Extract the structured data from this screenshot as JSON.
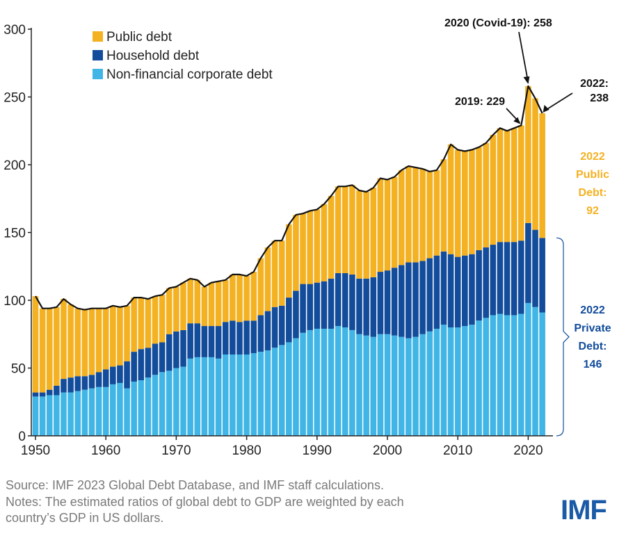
{
  "chart_data": {
    "type": "bar",
    "stacked": true,
    "x": [
      1950,
      1951,
      1952,
      1953,
      1954,
      1955,
      1956,
      1957,
      1958,
      1959,
      1960,
      1961,
      1962,
      1963,
      1964,
      1965,
      1966,
      1967,
      1968,
      1969,
      1970,
      1971,
      1972,
      1973,
      1974,
      1975,
      1976,
      1977,
      1978,
      1979,
      1980,
      1981,
      1982,
      1983,
      1984,
      1985,
      1986,
      1987,
      1988,
      1989,
      1990,
      1991,
      1992,
      1993,
      1994,
      1995,
      1996,
      1997,
      1998,
      1999,
      2000,
      2001,
      2002,
      2003,
      2004,
      2005,
      2006,
      2007,
      2008,
      2009,
      2010,
      2011,
      2012,
      2013,
      2014,
      2015,
      2016,
      2017,
      2018,
      2019,
      2020,
      2021,
      2022
    ],
    "series": [
      {
        "name": "Non-financial corporate debt",
        "color": "#41b6e6",
        "values": [
          29,
          29,
          30,
          30,
          32,
          32,
          33,
          34,
          35,
          36,
          36,
          38,
          39,
          35,
          40,
          41,
          43,
          45,
          47,
          48,
          50,
          51,
          57,
          58,
          58,
          58,
          57,
          60,
          60,
          60,
          60,
          61,
          62,
          63,
          65,
          67,
          69,
          72,
          76,
          78,
          79,
          79,
          79,
          81,
          80,
          78,
          75,
          74,
          73,
          75,
          75,
          74,
          73,
          72,
          73,
          75,
          77,
          79,
          82,
          80,
          80,
          81,
          82,
          85,
          87,
          89,
          90,
          89,
          89,
          90,
          98,
          95,
          91
        ]
      },
      {
        "name": "Household debt",
        "color": "#124c9b",
        "values": [
          3,
          3,
          4,
          7,
          10,
          11,
          11,
          10,
          10,
          11,
          13,
          13,
          13,
          20,
          22,
          23,
          22,
          23,
          22,
          27,
          27,
          27,
          26,
          25,
          23,
          23,
          24,
          24,
          25,
          24,
          25,
          24,
          27,
          29,
          30,
          29,
          33,
          35,
          36,
          34,
          34,
          35,
          37,
          39,
          40,
          41,
          41,
          42,
          44,
          46,
          47,
          50,
          53,
          56,
          55,
          54,
          54,
          54,
          54,
          54,
          52,
          52,
          52,
          52,
          52,
          52,
          53,
          54,
          54,
          54,
          59,
          57,
          55
        ]
      },
      {
        "name": "Public debt",
        "color": "#f4b122",
        "values": [
          71,
          62,
          60,
          58,
          59,
          54,
          50,
          49,
          49,
          47,
          45,
          45,
          43,
          41,
          40,
          38,
          36,
          35,
          35,
          34,
          33,
          35,
          33,
          32,
          29,
          32,
          33,
          31,
          34,
          35,
          33,
          36,
          42,
          47,
          49,
          48,
          54,
          56,
          52,
          54,
          54,
          57,
          61,
          64,
          64,
          66,
          65,
          64,
          66,
          69,
          67,
          67,
          70,
          71,
          70,
          68,
          64,
          63,
          68,
          81,
          79,
          77,
          77,
          76,
          77,
          81,
          84,
          82,
          84,
          85,
          101,
          97,
          92
        ]
      }
    ],
    "ylim": [
      0,
      300
    ],
    "yticks": [
      0,
      50,
      100,
      150,
      200,
      250,
      300
    ],
    "xticks": [
      1950,
      1960,
      1970,
      1980,
      1990,
      2000,
      2010,
      2020
    ],
    "total_line": true,
    "legend": {
      "position": "top-left"
    },
    "annotations": [
      {
        "text": "2020 (Covid-19): 258",
        "x": 2020,
        "y": 258
      },
      {
        "text": "2019: 229",
        "x": 2019,
        "y": 229
      },
      {
        "text_lines": [
          "2022:",
          "238"
        ],
        "x": 2022,
        "y": 238
      },
      {
        "text_lines": [
          "2022",
          "Public",
          "Debt:",
          "92"
        ],
        "color": "#f4b122"
      },
      {
        "text_lines": [
          "2022",
          "Private",
          "Debt:",
          "146"
        ],
        "color": "#124c9b"
      }
    ]
  },
  "footer": {
    "source": "Source: IMF 2023 Global Debt Database, and IMF staff calculations.",
    "notes_line1": "Notes: The estimated ratios of global debt to GDP are weighted by each",
    "notes_line2": "country’s GDP in US dollars."
  },
  "logo": {
    "text": "IMF"
  }
}
